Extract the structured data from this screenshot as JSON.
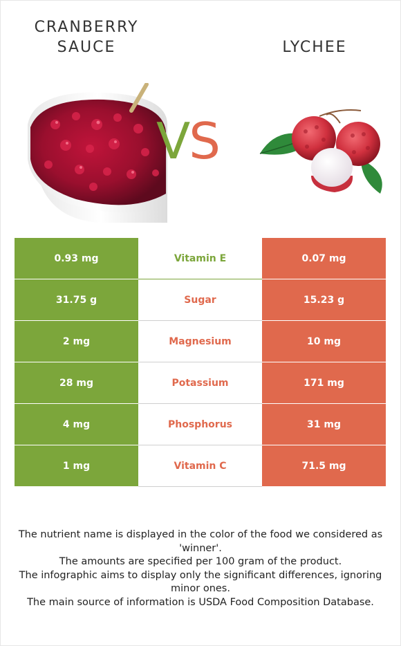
{
  "left_food": {
    "name": "CRANBERRY SAUCE",
    "line1": "CRANBERRY",
    "line2": "SAUCE",
    "color": "#7ca63b"
  },
  "right_food": {
    "name": "LYCHEE",
    "color": "#e0694d"
  },
  "vs": {
    "v": "V",
    "s": "S"
  },
  "rows": [
    {
      "left": "0.93 mg",
      "nutrient": "Vitamin E",
      "right": "0.07 mg",
      "winner": "left"
    },
    {
      "left": "31.75 g",
      "nutrient": "Sugar",
      "right": "15.23 g",
      "winner": "right"
    },
    {
      "left": "2 mg",
      "nutrient": "Magnesium",
      "right": "10 mg",
      "winner": "right"
    },
    {
      "left": "28 mg",
      "nutrient": "Potassium",
      "right": "171 mg",
      "winner": "right"
    },
    {
      "left": "4 mg",
      "nutrient": "Phosphorus",
      "right": "31 mg",
      "winner": "right"
    },
    {
      "left": "1 mg",
      "nutrient": "Vitamin C",
      "right": "71.5 mg",
      "winner": "right"
    }
  ],
  "notes": [
    "The nutrient name is displayed in the color of the food we considered as 'winner'.",
    "The amounts are specified per 100 gram of the product.",
    "The infographic aims to display only the significant differences, ignoring minor ones.",
    "The main source of information is USDA Food Composition Database."
  ]
}
